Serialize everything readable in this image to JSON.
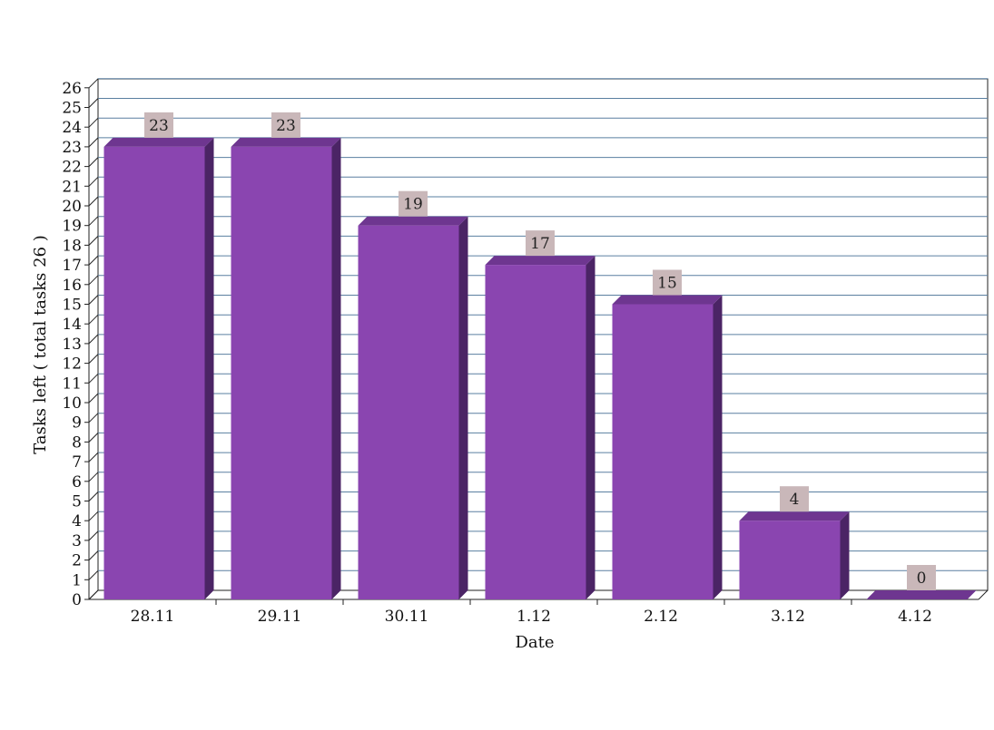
{
  "chart_data": {
    "type": "bar",
    "title": "",
    "xlabel": "Date",
    "ylabel": "Tasks left ( total tasks 26 )",
    "categories": [
      "28.11",
      "29.11",
      "30.11",
      "1.12",
      "2.12",
      "3.12",
      "4.12"
    ],
    "values": [
      23,
      23,
      19,
      17,
      15,
      4,
      0
    ],
    "ylim": [
      0,
      26
    ],
    "yticks": [
      0,
      1,
      2,
      3,
      4,
      5,
      6,
      7,
      8,
      9,
      10,
      11,
      12,
      13,
      14,
      15,
      16,
      17,
      18,
      19,
      20,
      21,
      22,
      23,
      24,
      25,
      26
    ],
    "grid": true,
    "data_labels": true,
    "style": "3d",
    "colors": {
      "bar_front": "#8a45b0",
      "bar_top": "#6e3690",
      "bar_side": "#4b2465",
      "label_bg": "#c9b7b9",
      "gridline": "#5a7fa0"
    }
  }
}
